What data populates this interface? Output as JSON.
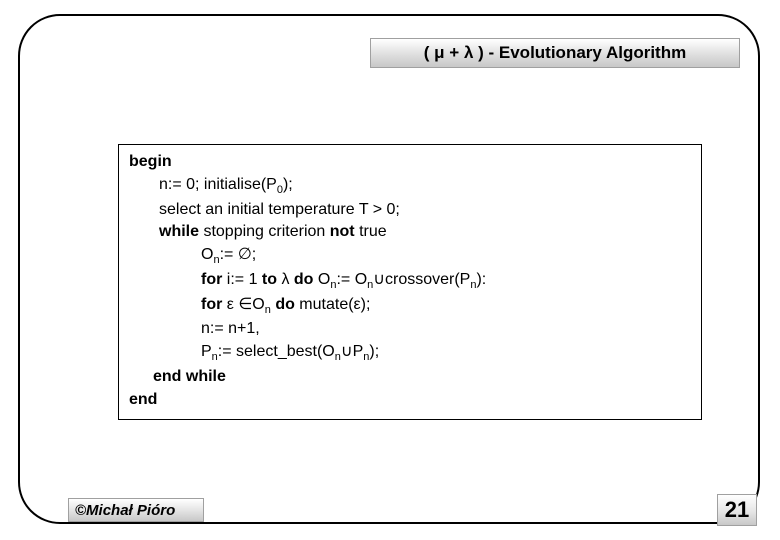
{
  "title": {
    "text": "( μ + λ ) - Evolutionary Algorithm",
    "font_size": 17,
    "font_weight": "bold",
    "bg_gradient": [
      "#ffffff",
      "#dcdcdc",
      "#c8c8c8"
    ],
    "border_color": "#a0a0a0"
  },
  "code": {
    "border_color": "#000000",
    "font_size": 16,
    "lines": {
      "l1_begin": "begin",
      "l2_a": "n:= 0; initialise(P",
      "l2_sub": "0",
      "l2_b": ");",
      "l3": "select an initial temperature T > 0;",
      "l4_a": "while",
      "l4_b": " stopping criterion ",
      "l4_c": "not",
      "l4_d": " true",
      "l5_a": "O",
      "l5_sub": "n",
      "l5_b": ":= ∅;",
      "l6_a": "for",
      "l6_b": " i:= 1 ",
      "l6_c": "to",
      "l6_d": " λ ",
      "l6_e": "do",
      "l6_f": " O",
      "l6_sub1": "n",
      "l6_g": ":= O",
      "l6_sub2": "n",
      "l6_h": "∪crossover(P",
      "l6_sub3": "n",
      "l6_i": "):",
      "l7_a": "for",
      "l7_b": " ε ∈O",
      "l7_sub": "n",
      "l7_c": " ",
      "l7_d": "do",
      "l7_e": " mutate(ε);",
      "l8": "n:= n+1,",
      "l9_a": "P",
      "l9_sub1": "n",
      "l9_b": ":= select_best(O",
      "l9_sub2": "n",
      "l9_c": "∪P",
      "l9_sub3": "n",
      "l9_d": ");",
      "l10": "end while",
      "l11": "end"
    }
  },
  "author": {
    "text": "©Michał Pióro",
    "font_style": "italic",
    "font_weight": "bold",
    "font_size": 15
  },
  "page_number": {
    "value": "21",
    "font_size": 22,
    "font_weight": "bold"
  },
  "frame": {
    "border_color": "#000000",
    "border_radius": 42,
    "border_width": 2.5
  }
}
